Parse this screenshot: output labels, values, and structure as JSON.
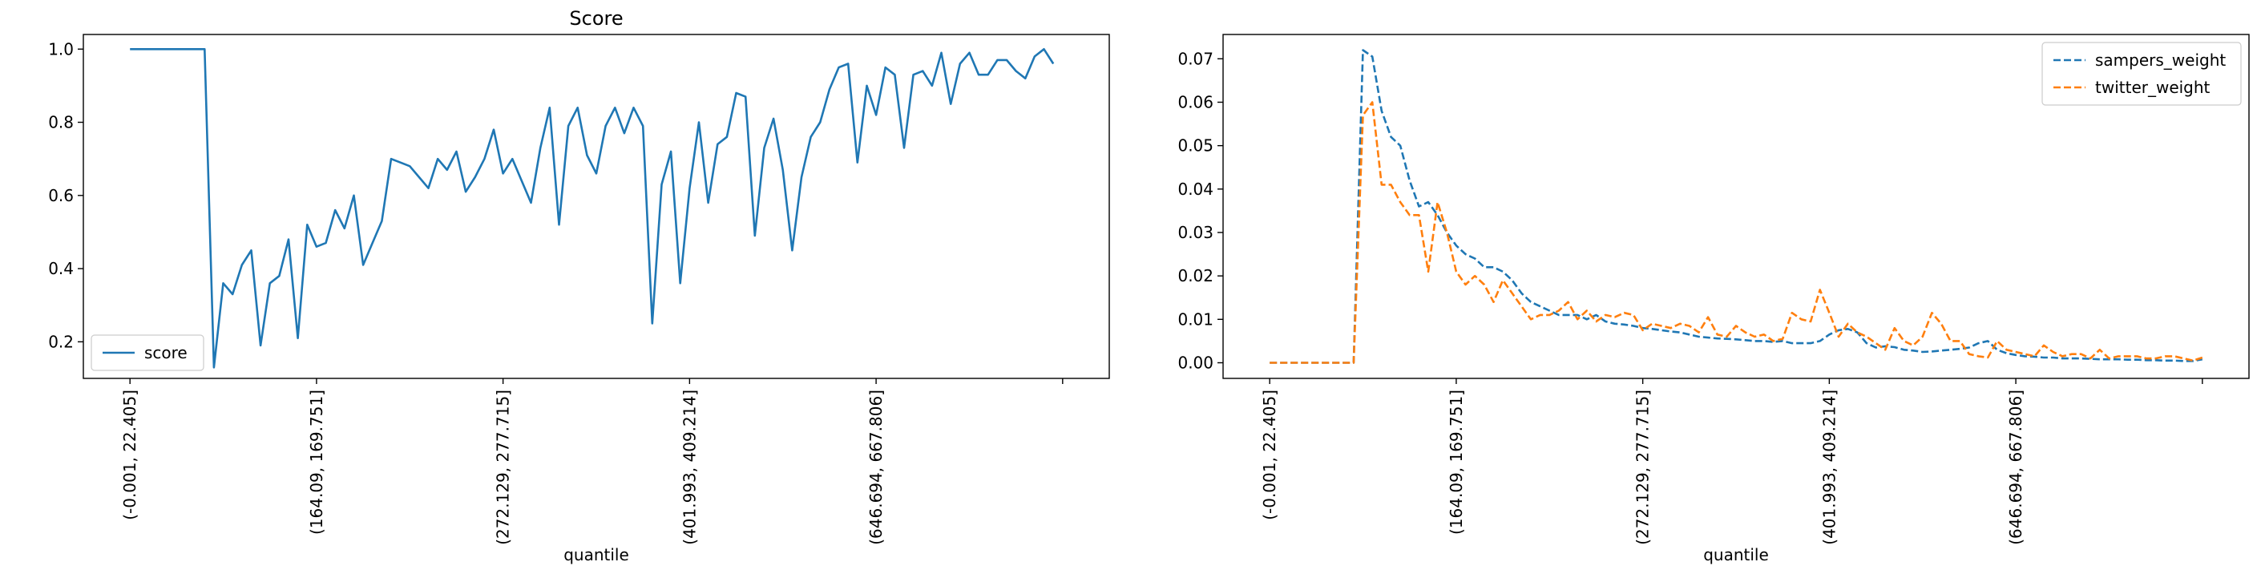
{
  "chart_data": [
    {
      "type": "line",
      "title": "Score",
      "xlabel": "quantile",
      "ylabel": "",
      "ylim": [
        0.1,
        1.04
      ],
      "yticks": [
        0.2,
        0.4,
        0.6,
        0.8,
        1.0
      ],
      "ytick_labels": [
        "0.2",
        "0.4",
        "0.6",
        "0.8",
        "1.0"
      ],
      "xticks": [
        0,
        20,
        40,
        60,
        80,
        100
      ],
      "xtick_labels": [
        "(-0.001, 22.405]",
        "(164.09, 169.751]",
        "(272.129, 277.715]",
        "(401.993, 409.214]",
        "(646.694, 667.806]",
        ""
      ],
      "legend_position": "lower-left",
      "grid": false,
      "series": [
        {
          "name": "score",
          "color": "#1f77b4",
          "dash": "solid",
          "values": [
            1.0,
            1.0,
            1.0,
            1.0,
            1.0,
            1.0,
            1.0,
            1.0,
            1.0,
            0.13,
            0.36,
            0.33,
            0.41,
            0.45,
            0.19,
            0.36,
            0.38,
            0.48,
            0.21,
            0.52,
            0.46,
            0.47,
            0.56,
            0.51,
            0.6,
            0.41,
            0.47,
            0.53,
            0.7,
            0.69,
            0.68,
            0.65,
            0.62,
            0.7,
            0.67,
            0.72,
            0.61,
            0.65,
            0.7,
            0.78,
            0.66,
            0.7,
            0.64,
            0.58,
            0.73,
            0.84,
            0.52,
            0.79,
            0.84,
            0.71,
            0.66,
            0.79,
            0.84,
            0.77,
            0.84,
            0.79,
            0.25,
            0.63,
            0.72,
            0.36,
            0.62,
            0.8,
            0.58,
            0.74,
            0.76,
            0.88,
            0.87,
            0.49,
            0.73,
            0.81,
            0.67,
            0.45,
            0.65,
            0.76,
            0.8,
            0.89,
            0.95,
            0.96,
            0.69,
            0.9,
            0.82,
            0.95,
            0.93,
            0.73,
            0.93,
            0.94,
            0.9,
            0.99,
            0.85,
            0.96,
            0.99,
            0.93,
            0.93,
            0.97,
            0.97,
            0.94,
            0.92,
            0.98,
            1.0,
            0.96
          ]
        }
      ]
    },
    {
      "type": "line",
      "title": "",
      "xlabel": "quantile",
      "ylabel": "",
      "ylim": [
        -0.0036,
        0.0756
      ],
      "yticks": [
        0.0,
        0.01,
        0.02,
        0.03,
        0.04,
        0.05,
        0.06,
        0.07
      ],
      "ytick_labels": [
        "0.00",
        "0.01",
        "0.02",
        "0.03",
        "0.04",
        "0.05",
        "0.06",
        "0.07"
      ],
      "xticks": [
        0,
        20,
        40,
        60,
        80,
        100
      ],
      "xtick_labels": [
        "(-0.001, 22.405]",
        "(164.09, 169.751]",
        "(272.129, 277.715]",
        "(401.993, 409.214]",
        "(646.694, 667.806]",
        ""
      ],
      "legend_position": "upper-right",
      "grid": false,
      "series": [
        {
          "name": "sampers_weight",
          "color": "#1f77b4",
          "dash": "dashed",
          "values": [
            0.0,
            0.0,
            0.0,
            0.0,
            0.0,
            0.0,
            0.0,
            0.0,
            0.0,
            0.0,
            0.072,
            0.0705,
            0.058,
            0.052,
            0.05,
            0.042,
            0.036,
            0.037,
            0.034,
            0.03,
            0.027,
            0.025,
            0.024,
            0.022,
            0.022,
            0.021,
            0.019,
            0.016,
            0.014,
            0.013,
            0.012,
            0.011,
            0.011,
            0.011,
            0.01,
            0.011,
            0.0095,
            0.009,
            0.0088,
            0.0085,
            0.008,
            0.0078,
            0.0075,
            0.0072,
            0.007,
            0.0065,
            0.006,
            0.0058,
            0.0056,
            0.0055,
            0.0054,
            0.0052,
            0.005,
            0.005,
            0.0048,
            0.005,
            0.0045,
            0.0045,
            0.0045,
            0.005,
            0.0065,
            0.0075,
            0.0078,
            0.007,
            0.0045,
            0.0035,
            0.0038,
            0.0036,
            0.003,
            0.0028,
            0.0025,
            0.0026,
            0.0028,
            0.003,
            0.0032,
            0.0035,
            0.0045,
            0.005,
            0.003,
            0.0022,
            0.0018,
            0.0015,
            0.0014,
            0.0012,
            0.0012,
            0.001,
            0.001,
            0.001,
            0.0009,
            0.0008,
            0.0008,
            0.0008,
            0.0007,
            0.0007,
            0.0006,
            0.0006,
            0.0005,
            0.0005,
            0.0004,
            0.0004,
            0.0008
          ]
        },
        {
          "name": "twitter_weight",
          "color": "#ff7f0e",
          "dash": "dashed",
          "values": [
            0.0,
            0.0,
            0.0,
            0.0,
            0.0,
            0.0,
            0.0,
            0.0,
            0.0,
            0.0,
            0.057,
            0.06,
            0.041,
            0.041,
            0.037,
            0.034,
            0.034,
            0.021,
            0.037,
            0.03,
            0.021,
            0.018,
            0.02,
            0.018,
            0.014,
            0.019,
            0.016,
            0.013,
            0.01,
            0.011,
            0.011,
            0.012,
            0.014,
            0.01,
            0.012,
            0.0095,
            0.011,
            0.0105,
            0.0115,
            0.011,
            0.0075,
            0.009,
            0.0085,
            0.008,
            0.009,
            0.0085,
            0.007,
            0.0105,
            0.0065,
            0.006,
            0.0085,
            0.007,
            0.006,
            0.0065,
            0.005,
            0.0055,
            0.0115,
            0.01,
            0.0095,
            0.0168,
            0.0115,
            0.006,
            0.009,
            0.007,
            0.006,
            0.0045,
            0.003,
            0.008,
            0.005,
            0.004,
            0.006,
            0.0115,
            0.009,
            0.005,
            0.005,
            0.002,
            0.0015,
            0.0012,
            0.005,
            0.003,
            0.0025,
            0.002,
            0.0015,
            0.004,
            0.0025,
            0.0015,
            0.002,
            0.002,
            0.001,
            0.003,
            0.001,
            0.0015,
            0.0015,
            0.0015,
            0.001,
            0.001,
            0.0015,
            0.0015,
            0.001,
            0.0005,
            0.0012
          ]
        }
      ]
    }
  ]
}
